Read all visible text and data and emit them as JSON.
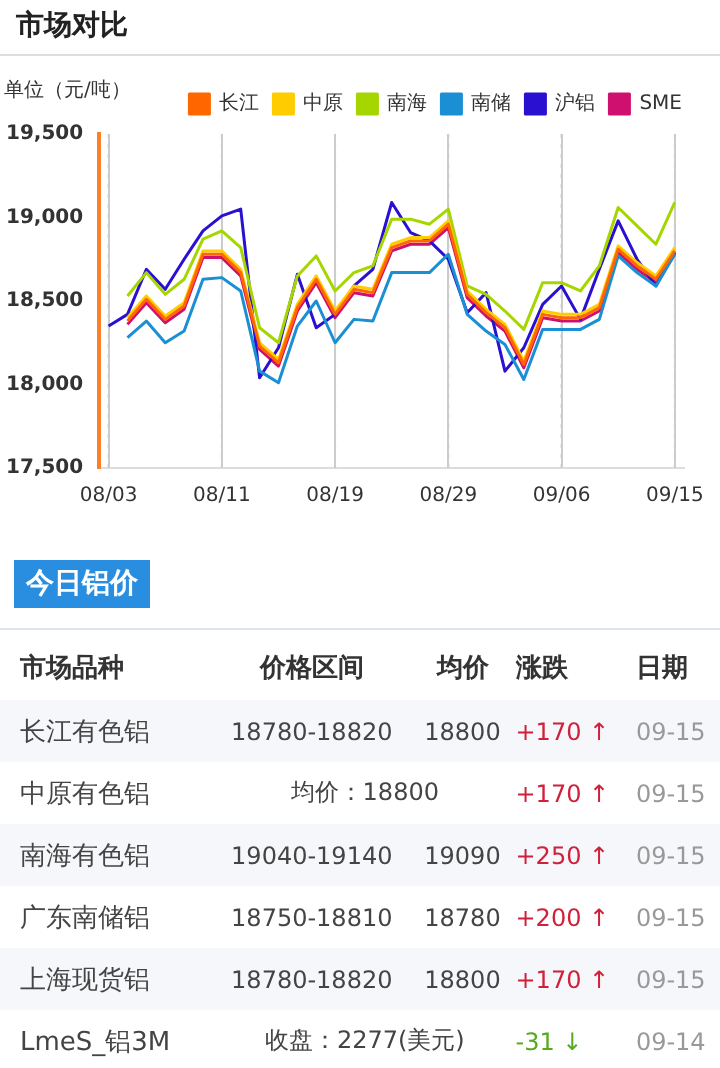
{
  "chart_data": [
    {
      "type": "line",
      "title": "市场对比",
      "ylabel": "单位（元/吨）",
      "categories": [
        "08/03",
        null,
        null,
        null,
        null,
        null,
        "08/11",
        null,
        null,
        null,
        null,
        null,
        "08/19",
        null,
        null,
        null,
        null,
        null,
        "08/29",
        null,
        null,
        null,
        null,
        null,
        "09/06",
        null,
        null,
        null,
        null,
        null,
        "09/15"
      ],
      "series": [
        {
          "name": "长江",
          "color": "#ff6600",
          "values": [
            null,
            18380,
            18510,
            18390,
            18470,
            18780,
            18780,
            18670,
            18230,
            18130,
            18460,
            18630,
            18420,
            18570,
            18550,
            18820,
            18860,
            18860,
            18960,
            18540,
            18430,
            18340,
            18120,
            18420,
            18400,
            18400,
            18460,
            18810,
            18710,
            18630,
            18800
          ]
        },
        {
          "name": "中原",
          "color": "#ffcc00",
          "values": [
            null,
            18400,
            18530,
            18410,
            18490,
            18800,
            18800,
            18690,
            18250,
            18150,
            18480,
            18650,
            18440,
            18590,
            18570,
            18840,
            18880,
            18880,
            18980,
            18560,
            18450,
            18360,
            18140,
            18440,
            18420,
            18420,
            18480,
            18830,
            18730,
            18650,
            18820
          ]
        },
        {
          "name": "南海",
          "color": "#a6d600",
          "values": [
            null,
            18530,
            18670,
            18540,
            18630,
            18870,
            18920,
            18820,
            18340,
            18250,
            18650,
            18770,
            18560,
            18670,
            18710,
            18990,
            18990,
            18960,
            19050,
            18590,
            18540,
            18440,
            18330,
            18610,
            18610,
            18560,
            18710,
            19060,
            18950,
            18840,
            19090
          ]
        },
        {
          "name": "南储",
          "color": "#1a8fd4",
          "values": [
            null,
            18280,
            18380,
            18250,
            18320,
            18630,
            18640,
            18560,
            18080,
            18010,
            18350,
            18500,
            18250,
            18390,
            18380,
            18670,
            18670,
            18670,
            18780,
            18420,
            18320,
            18240,
            18030,
            18330,
            18330,
            18330,
            18390,
            18770,
            18670,
            18590,
            18780
          ]
        },
        {
          "name": "沪铝",
          "color": "#2a10d0",
          "values": [
            18350,
            18420,
            18690,
            18570,
            18750,
            18920,
            19010,
            19050,
            18040,
            18220,
            18660,
            18340,
            18420,
            18590,
            18690,
            19090,
            18910,
            18860,
            18750,
            18430,
            18550,
            18080,
            18220,
            18480,
            18590,
            18390,
            18690,
            18980,
            18750,
            18590,
            18790
          ]
        },
        {
          "name": "SME",
          "color": "#d0106e",
          "values": [
            null,
            18360,
            18490,
            18370,
            18450,
            18760,
            18760,
            18650,
            18210,
            18110,
            18440,
            18610,
            18400,
            18550,
            18530,
            18800,
            18840,
            18840,
            18940,
            18520,
            18410,
            18320,
            18100,
            18400,
            18380,
            18380,
            18440,
            18790,
            18690,
            18610,
            18780
          ]
        }
      ],
      "ylim": [
        17500,
        19500
      ],
      "yticks": [
        {
          "value": 17500,
          "label": "17,500"
        },
        {
          "value": 18000,
          "label": "18,000"
        },
        {
          "value": 18500,
          "label": "18,500"
        },
        {
          "value": 19000,
          "label": "19,000"
        },
        {
          "value": 19500,
          "label": "19,500"
        }
      ],
      "grid": "x",
      "legend": "top right"
    },
    {
      "type": "other",
      "title": "今日铝价",
      "categories": [
        "市场品种",
        "价格区间",
        "均价",
        "涨跌",
        "日期"
      ],
      "y_categories": [
        "长江有色铝",
        "中原有色铝",
        "南海有色铝",
        "广东南储铝",
        "上海现货铝",
        "LmeS_铝3M"
      ],
      "cell_labels": [
        [
          "18780-18820",
          "18800",
          "+170 ↑",
          "09-15"
        ],
        [
          "均价：18800",
          null,
          "+170 ↑",
          "09-15"
        ],
        [
          "19040-19140",
          "19090",
          "+250 ↑",
          "09-15"
        ],
        [
          "18750-18810",
          "18780",
          "+200 ↑",
          "09-15"
        ],
        [
          "18780-18820",
          "18800",
          "+170 ↑",
          "09-15"
        ],
        [
          "收盘：2277(美元)",
          null,
          "-31 ↓",
          "09-14"
        ]
      ],
      "colors": [
        "#d0203a",
        "#d0203a",
        "#d0203a",
        "#d0203a",
        "#d0203a",
        "#55aa22"
      ]
    }
  ]
}
